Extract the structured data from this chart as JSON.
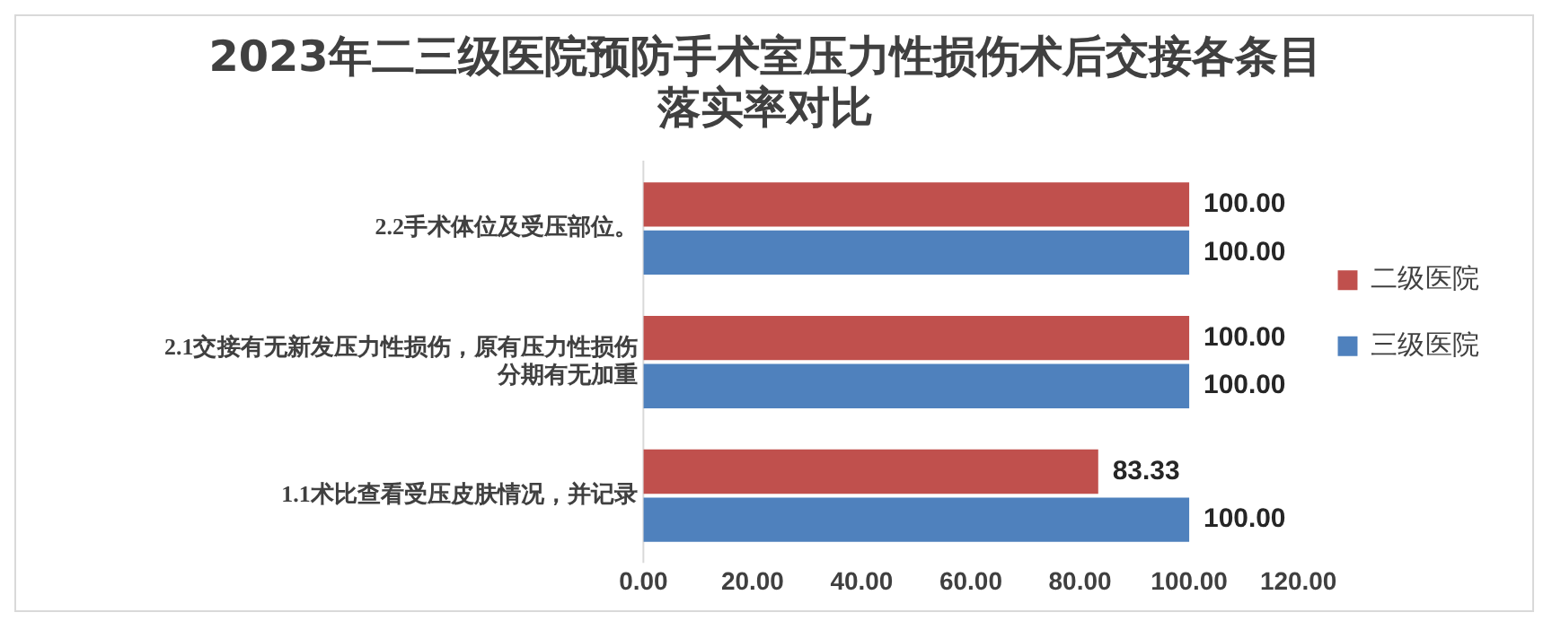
{
  "chart_data": {
    "type": "bar",
    "orientation": "horizontal",
    "title": "2023年二三级医院预防手术室压力性损伤术后交接各条目落实率对比",
    "categories": [
      "2.2手术体位及受压部位。",
      "2.1交接有无新发压力性损伤，原有压力性损伤分期有无加重",
      "1.1术比查看受压皮肤情况，并记录"
    ],
    "series": [
      {
        "name": "二级医院",
        "color": "#c0504d",
        "values": [
          100,
          100,
          83.33
        ],
        "value_labels": [
          "100.00",
          "100.00",
          "83.33"
        ]
      },
      {
        "name": "三级医院",
        "color": "#4f81bd",
        "values": [
          100,
          100,
          100
        ],
        "value_labels": [
          "100.00",
          "100.00",
          "100.00"
        ]
      }
    ],
    "xlim": [
      0,
      120
    ],
    "xticks": [
      {
        "value": 0,
        "label": "0.00"
      },
      {
        "value": 20,
        "label": "20.00"
      },
      {
        "value": 40,
        "label": "40.00"
      },
      {
        "value": 60,
        "label": "60.00"
      },
      {
        "value": 80,
        "label": "80.00"
      },
      {
        "value": 100,
        "label": "100.00"
      },
      {
        "value": 120,
        "label": "120.00"
      }
    ],
    "grid": false,
    "legend": "right"
  }
}
